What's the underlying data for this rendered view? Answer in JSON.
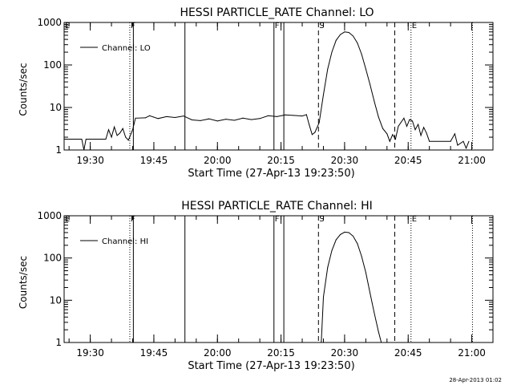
{
  "chart_data": [
    {
      "type": "line",
      "title": "HESSI PARTICLE_RATE Channel: LO",
      "xlabel": "Start Time (27-Apr-13 19:23:50)",
      "ylabel": "Counts/sec",
      "yscale": "log",
      "ylim": [
        1,
        1000
      ],
      "xlim": [
        "19:23:50",
        "21:05:00"
      ],
      "x_ticks": [
        "19:30",
        "19:45",
        "20:00",
        "20:15",
        "20:30",
        "20:45",
        "21:00"
      ],
      "y_ticks": [
        "1",
        "10",
        "100",
        "1000"
      ],
      "legend": {
        "label": "Channel: LO",
        "position": "top-left"
      },
      "grid": false,
      "markers": [
        {
          "time": "19:23:50",
          "label": "E",
          "style": "none"
        },
        {
          "time": "19:39:20",
          "label": "F",
          "style": "dotted"
        },
        {
          "time": "19:40:10",
          "label": "",
          "style": "solid"
        },
        {
          "time": "19:52:20",
          "label": "",
          "style": "solid"
        },
        {
          "time": "20:13:20",
          "label": "F",
          "style": "solid"
        },
        {
          "time": "20:15:40",
          "label": "",
          "style": "solid"
        },
        {
          "time": "20:23:50",
          "label": "S",
          "style": "dashed"
        },
        {
          "time": "20:41:50",
          "label": "",
          "style": "dashed"
        },
        {
          "time": "20:45:40",
          "label": "E",
          "style": "dotted"
        },
        {
          "time": "21:00:10",
          "label": "",
          "style": "dotted"
        }
      ],
      "series": [
        {
          "values": [
            [
              "19:23:50",
              1.8
            ],
            [
              "19:28:00",
              1.8
            ],
            [
              "19:28:30",
              1.0
            ],
            [
              "19:29:00",
              1.8
            ],
            [
              "19:33:40",
              1.8
            ],
            [
              "19:34:20",
              3.0
            ],
            [
              "19:35:00",
              2.0
            ],
            [
              "19:35:40",
              3.5
            ],
            [
              "19:36:20",
              2.2
            ],
            [
              "19:37:00",
              2.5
            ],
            [
              "19:37:40",
              3.2
            ],
            [
              "19:38:20",
              2.0
            ],
            [
              "19:39:00",
              1.7
            ],
            [
              "19:40:00",
              3.0
            ],
            [
              "19:40:40",
              5.6
            ],
            [
              "19:43:00",
              5.7
            ],
            [
              "19:44:00",
              6.4
            ],
            [
              "19:46:00",
              5.5
            ],
            [
              "19:48:00",
              6.1
            ],
            [
              "19:50:00",
              5.8
            ],
            [
              "19:52:00",
              6.3
            ],
            [
              "19:54:00",
              5.1
            ],
            [
              "19:56:00",
              4.9
            ],
            [
              "19:58:00",
              5.4
            ],
            [
              "20:00:00",
              4.8
            ],
            [
              "20:02:00",
              5.3
            ],
            [
              "20:04:00",
              5.0
            ],
            [
              "20:06:00",
              5.6
            ],
            [
              "20:08:00",
              5.2
            ],
            [
              "20:10:00",
              5.5
            ],
            [
              "20:12:00",
              6.4
            ],
            [
              "20:14:00",
              6.1
            ],
            [
              "20:16:00",
              6.7
            ],
            [
              "20:18:00",
              6.5
            ],
            [
              "20:20:00",
              6.3
            ],
            [
              "20:21:00",
              6.8
            ],
            [
              "20:21:40",
              3.9
            ],
            [
              "20:22:20",
              2.3
            ],
            [
              "20:23:00",
              2.6
            ],
            [
              "20:24:00",
              4.4
            ],
            [
              "20:25:00",
              20
            ],
            [
              "20:26:00",
              80
            ],
            [
              "20:27:00",
              200
            ],
            [
              "20:28:00",
              380
            ],
            [
              "20:29:00",
              520
            ],
            [
              "20:30:00",
              600
            ],
            [
              "20:31:00",
              580
            ],
            [
              "20:32:00",
              480
            ],
            [
              "20:33:00",
              330
            ],
            [
              "20:34:00",
              180
            ],
            [
              "20:35:00",
              80
            ],
            [
              "20:36:00",
              35
            ],
            [
              "20:37:00",
              14
            ],
            [
              "20:38:00",
              6
            ],
            [
              "20:39:00",
              3.2
            ],
            [
              "20:40:00",
              2.4
            ],
            [
              "20:40:40",
              1.6
            ],
            [
              "20:41:20",
              2.3
            ],
            [
              "20:42:00",
              1.8
            ],
            [
              "20:42:40",
              3.6
            ],
            [
              "20:43:20",
              4.5
            ],
            [
              "20:44:00",
              5.6
            ],
            [
              "20:44:40",
              3.6
            ],
            [
              "20:45:20",
              5.2
            ],
            [
              "20:46:00",
              4.8
            ],
            [
              "20:46:40",
              3.0
            ],
            [
              "20:47:20",
              4.0
            ],
            [
              "20:48:00",
              2.2
            ],
            [
              "20:48:40",
              3.4
            ],
            [
              "20:49:20",
              2.5
            ],
            [
              "20:50:00",
              1.6
            ],
            [
              "20:55:00",
              1.6
            ],
            [
              "20:56:00",
              2.4
            ],
            [
              "20:56:40",
              1.3
            ],
            [
              "20:58:00",
              1.6
            ],
            [
              "20:58:40",
              1.1
            ],
            [
              "20:59:20",
              1.6
            ]
          ]
        }
      ]
    },
    {
      "type": "line",
      "title": "HESSI PARTICLE_RATE Channel: HI",
      "xlabel": "Start Time (27-Apr-13 19:23:50)",
      "ylabel": "Counts/sec",
      "yscale": "log",
      "ylim": [
        1,
        1000
      ],
      "xlim": [
        "19:23:50",
        "21:05:00"
      ],
      "x_ticks": [
        "19:30",
        "19:45",
        "20:00",
        "20:15",
        "20:30",
        "20:45",
        "21:00"
      ],
      "y_ticks": [
        "1",
        "10",
        "100",
        "1000"
      ],
      "legend": {
        "label": "Channel: HI",
        "position": "top-left"
      },
      "grid": false,
      "markers": [
        {
          "time": "19:23:50",
          "label": "E",
          "style": "none"
        },
        {
          "time": "19:39:20",
          "label": "F",
          "style": "dotted"
        },
        {
          "time": "19:40:10",
          "label": "",
          "style": "solid"
        },
        {
          "time": "19:52:20",
          "label": "",
          "style": "solid"
        },
        {
          "time": "20:13:20",
          "label": "F",
          "style": "solid"
        },
        {
          "time": "20:15:40",
          "label": "",
          "style": "solid"
        },
        {
          "time": "20:23:50",
          "label": "S",
          "style": "dashed"
        },
        {
          "time": "20:41:50",
          "label": "",
          "style": "dashed"
        },
        {
          "time": "20:45:40",
          "label": "E",
          "style": "dotted"
        },
        {
          "time": "21:00:10",
          "label": "",
          "style": "dotted"
        }
      ],
      "series": [
        {
          "values": [
            [
              "20:24:30",
              1.0
            ],
            [
              "20:25:00",
              12
            ],
            [
              "20:26:00",
              60
            ],
            [
              "20:27:00",
              150
            ],
            [
              "20:28:00",
              270
            ],
            [
              "20:29:00",
              360
            ],
            [
              "20:30:00",
              410
            ],
            [
              "20:31:00",
              400
            ],
            [
              "20:32:00",
              330
            ],
            [
              "20:33:00",
              220
            ],
            [
              "20:34:00",
              110
            ],
            [
              "20:35:00",
              45
            ],
            [
              "20:36:00",
              15
            ],
            [
              "20:37:00",
              5
            ],
            [
              "20:38:00",
              1.8
            ],
            [
              "20:38:40",
              1.0
            ]
          ]
        }
      ]
    }
  ],
  "footer": {
    "timestamp": "28-Apr-2013 01:02"
  }
}
